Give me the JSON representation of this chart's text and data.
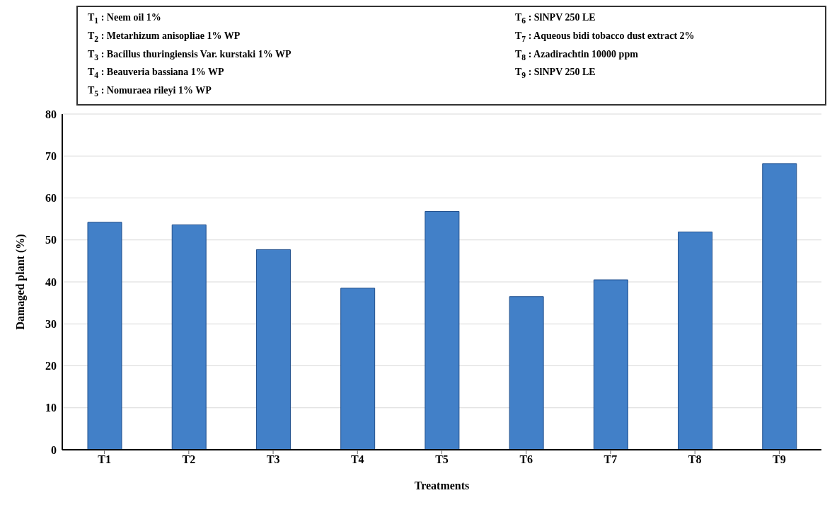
{
  "chart_data": {
    "type": "bar",
    "xlabel": "Treatments",
    "ylabel": "Damaged plant (%)",
    "categories": [
      "T1",
      "T2",
      "T3",
      "T4",
      "T5",
      "T6",
      "T7",
      "T8",
      "T9"
    ],
    "values": [
      54.2,
      53.6,
      47.7,
      38.5,
      56.8,
      36.5,
      40.5,
      51.9,
      68.2
    ],
    "color": "#4280c8",
    "ylim": [
      0,
      80
    ],
    "yticks": [
      0,
      10,
      20,
      30,
      40,
      50,
      60,
      70,
      80
    ],
    "grid": "y",
    "annotations": [
      "T$_{1}$ : Neem oil 1%",
      "T$_{2}$ : Metarhizum anisopliae 1% WP",
      "T$_{3}$ : Bacillus thuringiensis Var. kurstaki 1% WP",
      "T$_{4}$ : Beauveria bassiana 1% WP",
      "T$_{5}$ : Nomuraea rileyi 1% WP",
      "T$_{6}$ : SlNPV 250 LE",
      "T$_{7}$ : Aqueous bidi tobacco dust extract 2%",
      "T$_{8}$ : Azadirachtin 10000 ppm",
      "T$_{9}$ : SlNPV 250 LE"
    ]
  }
}
